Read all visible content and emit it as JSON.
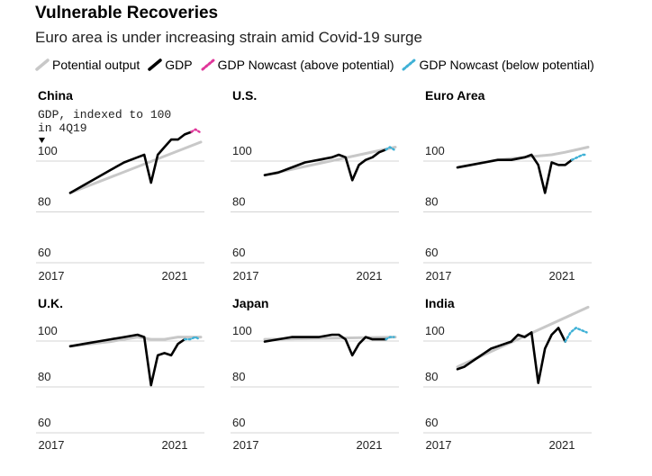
{
  "title": "Vulnerable Recoveries",
  "subtitle": "Euro area is under increasing strain amid Covid-19 surge",
  "legend": [
    {
      "label": "Potential output",
      "style": "potential",
      "color": "#c8c8c8"
    },
    {
      "label": "GDP",
      "style": "gdp",
      "color": "#000000"
    },
    {
      "label": "GDP Nowcast (above potential)",
      "style": "above",
      "color": "#e0369a"
    },
    {
      "label": "GDP Nowcast (below potential)",
      "style": "below",
      "color": "#3fb1d6"
    }
  ],
  "colors": {
    "potential": "#c8c8c8",
    "gdp": "#000000",
    "above": "#e0369a",
    "below": "#3fb1d6",
    "grid": "#d4d4d4"
  },
  "chart_data": [
    {
      "type": "line",
      "title": "China",
      "note": "GDP, indexed to 100 in 4Q19",
      "ylim": [
        60,
        115
      ],
      "yticks": [
        100,
        80,
        60
      ],
      "xticks": [
        2017,
        2021
      ],
      "xlim": [
        2017.0,
        2021.95
      ],
      "potential": [
        [
          2017.0,
          85
        ],
        [
          2021.85,
          105
        ]
      ],
      "gdp": [
        [
          2017.0,
          85
        ],
        [
          2017.5,
          88
        ],
        [
          2018.0,
          91
        ],
        [
          2018.5,
          94
        ],
        [
          2019.0,
          97
        ],
        [
          2019.5,
          99
        ],
        [
          2019.75,
          100
        ],
        [
          2020.0,
          89
        ],
        [
          2020.25,
          100
        ],
        [
          2020.5,
          103
        ],
        [
          2020.75,
          106
        ],
        [
          2021.0,
          106
        ],
        [
          2021.25,
          108
        ],
        [
          2021.5,
          109
        ]
      ],
      "nowcast_above": [
        [
          2021.5,
          109
        ],
        [
          2021.65,
          110
        ],
        [
          2021.8,
          109
        ]
      ],
      "nowcast_below": []
    },
    {
      "type": "line",
      "title": "U.S.",
      "note": "",
      "ylim": [
        60,
        115
      ],
      "yticks": [
        100,
        80,
        60
      ],
      "xticks": [
        2017,
        2021
      ],
      "xlim": [
        2017.0,
        2021.95
      ],
      "potential": [
        [
          2017.0,
          92
        ],
        [
          2021.85,
          103
        ]
      ],
      "gdp": [
        [
          2017.0,
          92
        ],
        [
          2017.5,
          93
        ],
        [
          2018.0,
          95
        ],
        [
          2018.5,
          97
        ],
        [
          2019.0,
          98
        ],
        [
          2019.5,
          99
        ],
        [
          2019.75,
          100
        ],
        [
          2020.0,
          99
        ],
        [
          2020.25,
          90
        ],
        [
          2020.5,
          96
        ],
        [
          2020.75,
          98
        ],
        [
          2021.0,
          99
        ],
        [
          2021.25,
          101
        ],
        [
          2021.5,
          102
        ]
      ],
      "nowcast_above": [],
      "nowcast_below": [
        [
          2021.5,
          102
        ],
        [
          2021.65,
          103
        ],
        [
          2021.8,
          102
        ]
      ]
    },
    {
      "type": "line",
      "title": "Euro Area",
      "note": "",
      "ylim": [
        60,
        115
      ],
      "yticks": [
        100,
        80,
        60
      ],
      "xticks": [
        2017,
        2021
      ],
      "xlim": [
        2017.0,
        2021.95
      ],
      "potential": [
        [
          2017.0,
          95
        ],
        [
          2018.5,
          98
        ],
        [
          2019.5,
          99
        ],
        [
          2020.5,
          100
        ],
        [
          2021.0,
          101
        ],
        [
          2021.85,
          103
        ]
      ],
      "gdp": [
        [
          2017.0,
          95
        ],
        [
          2017.5,
          96
        ],
        [
          2018.0,
          97
        ],
        [
          2018.5,
          98
        ],
        [
          2019.0,
          98
        ],
        [
          2019.5,
          99
        ],
        [
          2019.75,
          100
        ],
        [
          2020.0,
          96
        ],
        [
          2020.25,
          85
        ],
        [
          2020.5,
          97
        ],
        [
          2020.75,
          96
        ],
        [
          2021.0,
          96
        ],
        [
          2021.25,
          98
        ]
      ],
      "nowcast_above": [],
      "nowcast_below": [
        [
          2021.25,
          98
        ],
        [
          2021.45,
          99
        ],
        [
          2021.65,
          100
        ],
        [
          2021.8,
          100
        ]
      ]
    },
    {
      "type": "line",
      "title": "U.K.",
      "note": "",
      "ylim": [
        60,
        115
      ],
      "yticks": [
        100,
        80,
        60
      ],
      "xticks": [
        2017,
        2021
      ],
      "xlim": [
        2017.0,
        2021.95
      ],
      "potential": [
        [
          2017.0,
          95
        ],
        [
          2018.5,
          97
        ],
        [
          2019.5,
          99
        ],
        [
          2020.0,
          98
        ],
        [
          2020.5,
          98
        ],
        [
          2021.0,
          99
        ],
        [
          2021.85,
          99
        ]
      ],
      "gdp": [
        [
          2017.0,
          95
        ],
        [
          2017.5,
          96
        ],
        [
          2018.0,
          97
        ],
        [
          2018.5,
          98
        ],
        [
          2019.0,
          99
        ],
        [
          2019.5,
          100
        ],
        [
          2019.75,
          99
        ],
        [
          2020.0,
          78
        ],
        [
          2020.25,
          91
        ],
        [
          2020.5,
          92
        ],
        [
          2020.75,
          91
        ],
        [
          2021.0,
          96
        ],
        [
          2021.25,
          98
        ]
      ],
      "nowcast_above": [],
      "nowcast_below": [
        [
          2021.25,
          98
        ],
        [
          2021.45,
          98
        ],
        [
          2021.65,
          99
        ],
        [
          2021.8,
          98
        ]
      ]
    },
    {
      "type": "line",
      "title": "Japan",
      "note": "",
      "ylim": [
        60,
        115
      ],
      "yticks": [
        100,
        80,
        60
      ],
      "xticks": [
        2017,
        2021
      ],
      "xlim": [
        2017.0,
        2021.95
      ],
      "potential": [
        [
          2017.0,
          98
        ],
        [
          2021.85,
          99
        ]
      ],
      "gdp": [
        [
          2017.0,
          97
        ],
        [
          2017.5,
          98
        ],
        [
          2018.0,
          99
        ],
        [
          2018.5,
          99
        ],
        [
          2019.0,
          99
        ],
        [
          2019.5,
          100
        ],
        [
          2019.75,
          100
        ],
        [
          2020.0,
          98
        ],
        [
          2020.25,
          91
        ],
        [
          2020.5,
          96
        ],
        [
          2020.75,
          99
        ],
        [
          2021.0,
          98
        ],
        [
          2021.25,
          98
        ],
        [
          2021.5,
          98
        ]
      ],
      "nowcast_above": [],
      "nowcast_below": [
        [
          2021.5,
          98
        ],
        [
          2021.65,
          99
        ],
        [
          2021.8,
          99
        ]
      ]
    },
    {
      "type": "line",
      "title": "India",
      "note": "",
      "ylim": [
        60,
        115
      ],
      "yticks": [
        100,
        80,
        60
      ],
      "xticks": [
        2017,
        2021
      ],
      "xlim": [
        2017.0,
        2021.95
      ],
      "potential": [
        [
          2017.0,
          86
        ],
        [
          2021.85,
          112
        ]
      ],
      "gdp": [
        [
          2017.0,
          85
        ],
        [
          2017.25,
          86
        ],
        [
          2017.5,
          88
        ],
        [
          2017.75,
          90
        ],
        [
          2018.0,
          92
        ],
        [
          2018.25,
          94
        ],
        [
          2018.5,
          95
        ],
        [
          2018.75,
          96
        ],
        [
          2019.0,
          97
        ],
        [
          2019.25,
          100
        ],
        [
          2019.5,
          99
        ],
        [
          2019.75,
          101
        ],
        [
          2020.0,
          79
        ],
        [
          2020.25,
          94
        ],
        [
          2020.5,
          100
        ],
        [
          2020.75,
          103
        ],
        [
          2021.0,
          97
        ]
      ],
      "nowcast_above": [],
      "nowcast_below": [
        [
          2021.0,
          97
        ],
        [
          2021.2,
          101
        ],
        [
          2021.4,
          103
        ],
        [
          2021.6,
          102
        ],
        [
          2021.8,
          101
        ]
      ]
    }
  ]
}
